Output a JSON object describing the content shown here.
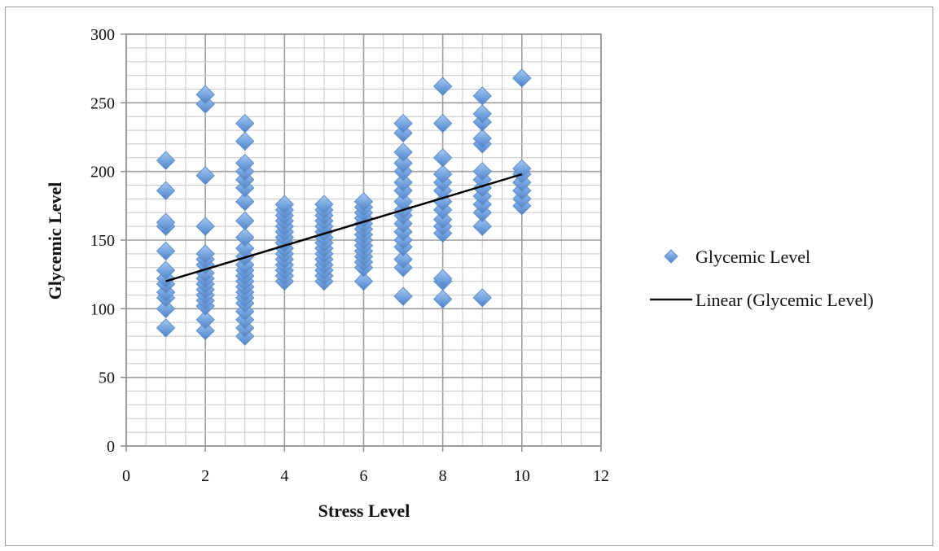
{
  "chart_data": {
    "type": "scatter",
    "title": "",
    "xlabel": "Stress Level",
    "ylabel": "Glycemic Level",
    "xlim": [
      0,
      12
    ],
    "ylim": [
      0,
      300
    ],
    "x_ticks": [
      0,
      2,
      4,
      6,
      8,
      10,
      12
    ],
    "y_ticks": [
      0,
      50,
      100,
      150,
      200,
      250,
      300
    ],
    "x_tick_labels": [
      "0",
      "2",
      "4",
      "6",
      "8",
      "10",
      "12"
    ],
    "y_tick_labels": [
      "0",
      "50",
      "100",
      "150",
      "200",
      "250",
      "300"
    ],
    "grid": true,
    "legend_position": "right",
    "series": [
      {
        "name": "Glycemic Level",
        "marker": "diamond",
        "color": "#6f9fdc",
        "points": [
          [
            1,
            86
          ],
          [
            1,
            100
          ],
          [
            1,
            108
          ],
          [
            1,
            112
          ],
          [
            1,
            118
          ],
          [
            1,
            122
          ],
          [
            1,
            128
          ],
          [
            1,
            142
          ],
          [
            1,
            160
          ],
          [
            1,
            163
          ],
          [
            1,
            186
          ],
          [
            1,
            208
          ],
          [
            2,
            84
          ],
          [
            2,
            92
          ],
          [
            2,
            102
          ],
          [
            2,
            106
          ],
          [
            2,
            110
          ],
          [
            2,
            114
          ],
          [
            2,
            118
          ],
          [
            2,
            122
          ],
          [
            2,
            126
          ],
          [
            2,
            132
          ],
          [
            2,
            136
          ],
          [
            2,
            140
          ],
          [
            2,
            160
          ],
          [
            2,
            197
          ],
          [
            2,
            249
          ],
          [
            2,
            256
          ],
          [
            3,
            80
          ],
          [
            3,
            86
          ],
          [
            3,
            92
          ],
          [
            3,
            98
          ],
          [
            3,
            104
          ],
          [
            3,
            108
          ],
          [
            3,
            112
          ],
          [
            3,
            116
          ],
          [
            3,
            120
          ],
          [
            3,
            124
          ],
          [
            3,
            128
          ],
          [
            3,
            132
          ],
          [
            3,
            138
          ],
          [
            3,
            144
          ],
          [
            3,
            152
          ],
          [
            3,
            164
          ],
          [
            3,
            178
          ],
          [
            3,
            188
          ],
          [
            3,
            194
          ],
          [
            3,
            200
          ],
          [
            3,
            206
          ],
          [
            3,
            222
          ],
          [
            3,
            235
          ],
          [
            4,
            120
          ],
          [
            4,
            124
          ],
          [
            4,
            128
          ],
          [
            4,
            132
          ],
          [
            4,
            136
          ],
          [
            4,
            140
          ],
          [
            4,
            144
          ],
          [
            4,
            148
          ],
          [
            4,
            152
          ],
          [
            4,
            156
          ],
          [
            4,
            160
          ],
          [
            4,
            164
          ],
          [
            4,
            168
          ],
          [
            4,
            172
          ],
          [
            4,
            176
          ],
          [
            5,
            120
          ],
          [
            5,
            124
          ],
          [
            5,
            128
          ],
          [
            5,
            132
          ],
          [
            5,
            136
          ],
          [
            5,
            140
          ],
          [
            5,
            144
          ],
          [
            5,
            148
          ],
          [
            5,
            152
          ],
          [
            5,
            156
          ],
          [
            5,
            160
          ],
          [
            5,
            164
          ],
          [
            5,
            168
          ],
          [
            5,
            172
          ],
          [
            5,
            176
          ],
          [
            6,
            120
          ],
          [
            6,
            130
          ],
          [
            6,
            134
          ],
          [
            6,
            138
          ],
          [
            6,
            142
          ],
          [
            6,
            146
          ],
          [
            6,
            150
          ],
          [
            6,
            154
          ],
          [
            6,
            158
          ],
          [
            6,
            162
          ],
          [
            6,
            166
          ],
          [
            6,
            170
          ],
          [
            6,
            174
          ],
          [
            6,
            178
          ],
          [
            7,
            109
          ],
          [
            7,
            130
          ],
          [
            7,
            136
          ],
          [
            7,
            145
          ],
          [
            7,
            150
          ],
          [
            7,
            156
          ],
          [
            7,
            162
          ],
          [
            7,
            168
          ],
          [
            7,
            172
          ],
          [
            7,
            178
          ],
          [
            7,
            186
          ],
          [
            7,
            192
          ],
          [
            7,
            200
          ],
          [
            7,
            206
          ],
          [
            7,
            214
          ],
          [
            7,
            228
          ],
          [
            7,
            235
          ],
          [
            8,
            107
          ],
          [
            8,
            120
          ],
          [
            8,
            122
          ],
          [
            8,
            155
          ],
          [
            8,
            160
          ],
          [
            8,
            165
          ],
          [
            8,
            172
          ],
          [
            8,
            178
          ],
          [
            8,
            186
          ],
          [
            8,
            192
          ],
          [
            8,
            198
          ],
          [
            8,
            210
          ],
          [
            8,
            235
          ],
          [
            8,
            262
          ],
          [
            9,
            108
          ],
          [
            9,
            160
          ],
          [
            9,
            170
          ],
          [
            9,
            176
          ],
          [
            9,
            182
          ],
          [
            9,
            188
          ],
          [
            9,
            194
          ],
          [
            9,
            200
          ],
          [
            9,
            220
          ],
          [
            9,
            224
          ],
          [
            9,
            236
          ],
          [
            9,
            242
          ],
          [
            9,
            255
          ],
          [
            10,
            175
          ],
          [
            10,
            180
          ],
          [
            10,
            186
          ],
          [
            10,
            192
          ],
          [
            10,
            198
          ],
          [
            10,
            202
          ],
          [
            10,
            268
          ]
        ]
      },
      {
        "name": "Linear (Glycemic Level)",
        "kind": "trendline",
        "color": "#000000",
        "x": [
          1,
          10
        ],
        "y": [
          120,
          198
        ]
      }
    ]
  }
}
